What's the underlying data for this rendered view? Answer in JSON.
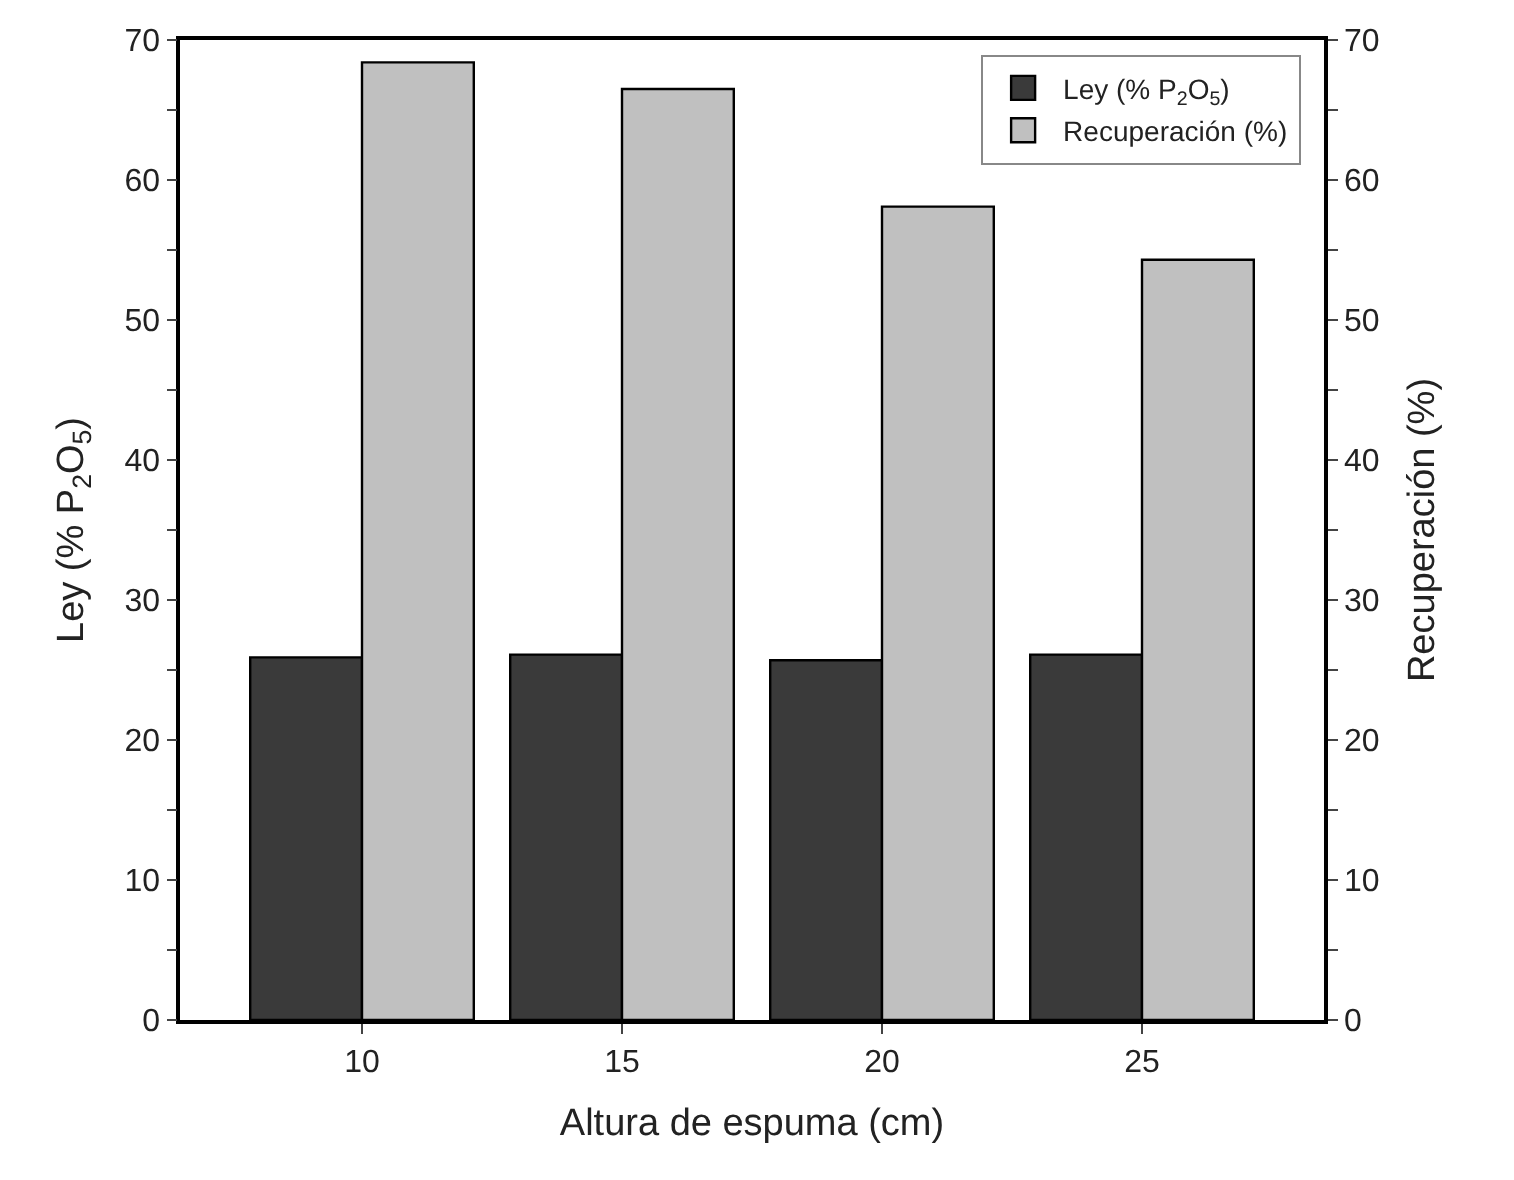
{
  "chart_data": {
    "type": "bar",
    "xlabel": "Altura de espuma (cm)",
    "ylabel": "Ley (% P$_{2}$O$_{5}$)",
    "y2label": "Recuperación (%)",
    "categories": [
      "10",
      "15",
      "20",
      "25"
    ],
    "series": [
      {
        "name": "Ley (% P$_{2}$O$_{5}$)",
        "color": "#3a3a3a",
        "values": [
          25.9,
          26.1,
          25.7,
          26.1
        ]
      },
      {
        "name": "Recuperación (%)",
        "color": "#c0c0c0",
        "values": [
          68.4,
          66.5,
          58.1,
          54.3
        ],
        "axis": "y2"
      }
    ],
    "ylim": [
      0,
      70
    ],
    "yticks": [
      0,
      {
        "value": 5,
        "label": null
      },
      10,
      {
        "value": 15,
        "label": null
      },
      20,
      {
        "value": 25,
        "label": null
      },
      30,
      {
        "value": 35,
        "label": null
      },
      40,
      {
        "value": 45,
        "label": null
      },
      50,
      {
        "value": 55,
        "label": null
      },
      60,
      {
        "value": 65,
        "label": null
      },
      70
    ],
    "y2lim": [
      0,
      70
    ],
    "y2ticks": [
      0,
      {
        "value": 5,
        "label": null
      },
      10,
      {
        "value": 15,
        "label": null
      },
      20,
      {
        "value": 25,
        "label": null
      },
      30,
      {
        "value": 35,
        "label": null
      },
      40,
      {
        "value": 45,
        "label": null
      },
      50,
      {
        "value": 55,
        "label": null
      },
      60,
      {
        "value": 65,
        "label": null
      },
      70
    ],
    "legend": "top right"
  }
}
